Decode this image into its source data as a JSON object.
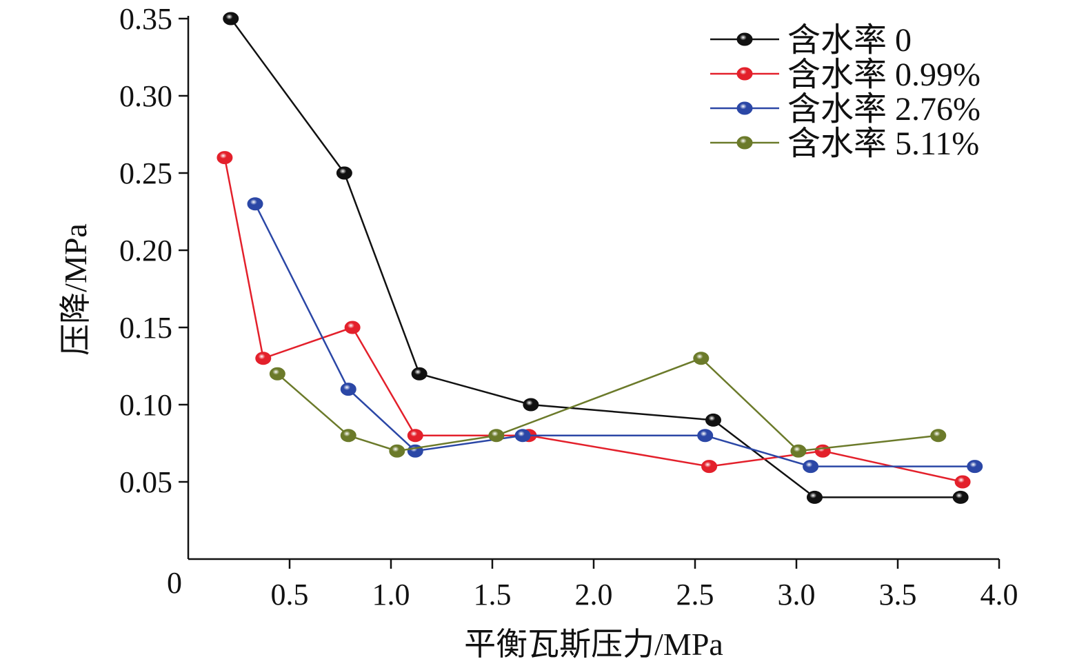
{
  "chart_data": {
    "type": "line",
    "title": "",
    "xlabel": "平衡瓦斯压力/MPa",
    "ylabel": "压降/MPa",
    "xlim": [
      0,
      4.0
    ],
    "ylim": [
      0,
      0.35
    ],
    "origin_label": "0",
    "xticks": [
      "0.5",
      "1.0",
      "1.5",
      "2.0",
      "2.5",
      "3.0",
      "3.5",
      "4.0"
    ],
    "yticks": [
      "0.05",
      "0.10",
      "0.15",
      "0.20",
      "0.25",
      "0.30",
      "0.35"
    ],
    "legend_position": "top-right",
    "grid": false,
    "series": [
      {
        "name": "含水率 0",
        "color": "#111111",
        "x": [
          0.21,
          0.77,
          1.14,
          1.69,
          2.59,
          3.09,
          3.81
        ],
        "y": [
          0.35,
          0.25,
          0.12,
          0.1,
          0.09,
          0.04,
          0.04
        ]
      },
      {
        "name": "含水率 0.99%",
        "color": "#e3202b",
        "x": [
          0.18,
          0.37,
          0.81,
          1.12,
          1.68,
          2.57,
          3.13,
          3.82
        ],
        "y": [
          0.26,
          0.13,
          0.15,
          0.08,
          0.08,
          0.06,
          0.07,
          0.05
        ]
      },
      {
        "name": "含水率 2.76%",
        "color": "#2b47a6",
        "x": [
          0.33,
          0.79,
          1.12,
          1.65,
          2.55,
          3.07,
          3.88
        ],
        "y": [
          0.23,
          0.11,
          0.07,
          0.08,
          0.08,
          0.06,
          0.06
        ]
      },
      {
        "name": "含水率 5.11%",
        "color": "#6b7a2a",
        "x": [
          0.44,
          0.79,
          1.03,
          1.52,
          2.53,
          3.01,
          3.7
        ],
        "y": [
          0.12,
          0.08,
          0.07,
          0.08,
          0.13,
          0.07,
          0.08
        ]
      }
    ]
  }
}
